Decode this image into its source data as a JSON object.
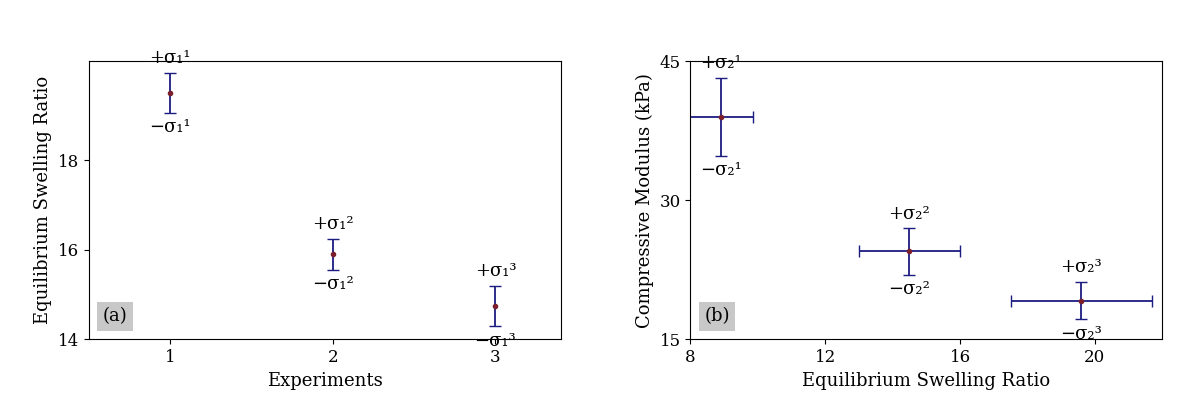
{
  "chart_data": [
    {
      "type": "scatter",
      "panel_label": "(a)",
      "x_label": "Experiments",
      "y_label": "Equilibrium Swelling Ratio",
      "x": [
        1,
        2,
        3
      ],
      "values": [
        19.5,
        15.9,
        14.75
      ],
      "y_error": [
        0.45,
        0.35,
        0.45
      ],
      "point_labels": [
        {
          "upper": "+σ₁¹",
          "lower": "−σ₁¹"
        },
        {
          "upper": "+σ₁²",
          "lower": "−σ₁²"
        },
        {
          "upper": "+σ₁³",
          "lower": "−σ₁³"
        }
      ],
      "color": "#1c1c80",
      "marker": "o",
      "xlim": [
        0.5,
        3.4
      ],
      "xticks": [
        1,
        2,
        3
      ],
      "ylim": [
        14,
        20.2
      ],
      "yticks": [
        14,
        16,
        18
      ],
      "grid": false
    },
    {
      "type": "scatter",
      "panel_label": "(b)",
      "x_label": "Equilibrium Swelling Ratio",
      "y_label": "Compressive Modulus (kPa)",
      "x": [
        8.9,
        14.5,
        19.6
      ],
      "values": [
        39,
        24.5,
        19.2
      ],
      "x_error": [
        0.95,
        1.5,
        2.1
      ],
      "y_error": [
        4.2,
        2.5,
        2.0
      ],
      "point_labels": [
        {
          "upper": "+σ₂¹",
          "lower": "−σ₂¹"
        },
        {
          "upper": "+σ₂²",
          "lower": "−σ₂²"
        },
        {
          "upper": "+σ₂³",
          "lower": "−σ₂³"
        }
      ],
      "color": "#1c1c80",
      "marker": "o",
      "xlim": [
        8,
        22
      ],
      "xticks": [
        8,
        12,
        16,
        20
      ],
      "ylim": [
        15,
        45
      ],
      "yticks": [
        15,
        30,
        45
      ],
      "grid": false
    }
  ]
}
